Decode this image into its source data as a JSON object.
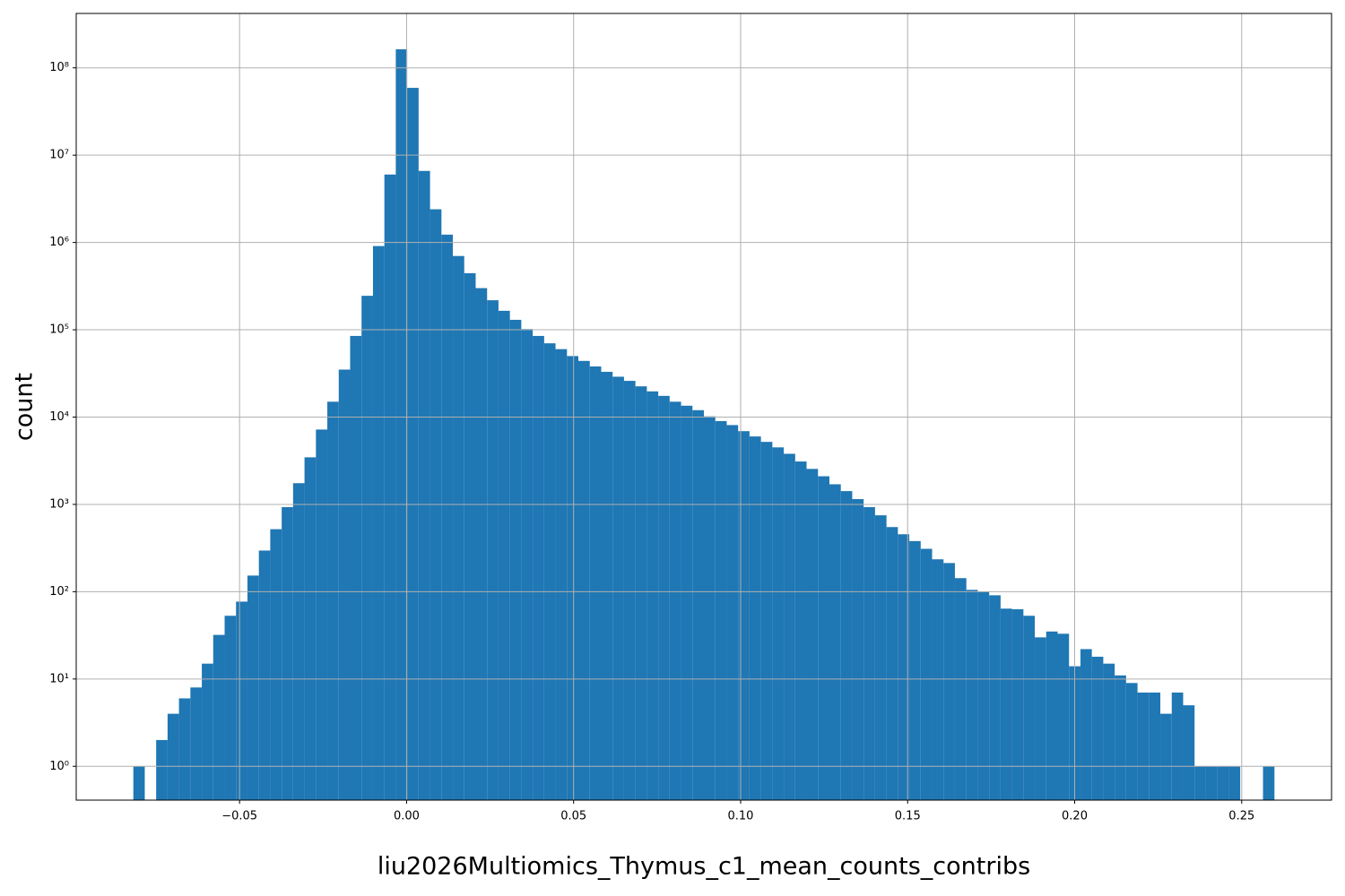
{
  "chart_data": {
    "type": "histogram",
    "x_label": "liu2026Multiomics_Thymus_c1_mean_counts_contribs",
    "y_label": "count",
    "color": "#1f77b4",
    "log_y": true,
    "grid": true,
    "bins": [
      -0.0818,
      -0.07838,
      -0.07497,
      -0.07155,
      -0.06814,
      -0.06472,
      -0.0613,
      -0.05789,
      -0.05447,
      -0.05106,
      -0.04764,
      -0.04422,
      -0.04081,
      -0.03739,
      -0.03398,
      -0.03056,
      -0.02714,
      -0.02373,
      -0.02031,
      -0.0169,
      -0.01348,
      -0.01006,
      -0.00665,
      -0.00323,
      0.00018,
      0.0036,
      0.00702,
      0.01043,
      0.01385,
      0.01726,
      0.02068,
      0.0241,
      0.02751,
      0.03093,
      0.03434,
      0.03776,
      0.04118,
      0.04459,
      0.04801,
      0.05142,
      0.05484,
      0.05826,
      0.06167,
      0.06509,
      0.0685,
      0.07192,
      0.07534,
      0.07875,
      0.08217,
      0.08558,
      0.089,
      0.09242,
      0.09583,
      0.09925,
      0.10266,
      0.10608,
      0.1095,
      0.11291,
      0.11633,
      0.11974,
      0.12316,
      0.12658,
      0.12999,
      0.13341,
      0.13682,
      0.14024,
      0.14366,
      0.14707,
      0.15049,
      0.1539,
      0.15732,
      0.16074,
      0.16415,
      0.16757,
      0.17098,
      0.1744,
      0.17782,
      0.18123,
      0.18465,
      0.18806,
      0.19148,
      0.1949,
      0.19831,
      0.20173,
      0.20514,
      0.20856,
      0.21198,
      0.21539,
      0.21881,
      0.22222,
      0.22564,
      0.22906,
      0.23247,
      0.23589,
      0.2393,
      0.24272,
      0.24614,
      0.24955,
      0.25297,
      0.25638,
      0.2598
    ],
    "values": [
      1,
      0,
      2,
      4,
      6,
      8,
      15,
      32,
      53,
      77,
      153,
      296,
      520,
      930,
      1750,
      3460,
      7200,
      15000,
      35000,
      85000,
      245000,
      910000,
      6000000,
      163000000,
      59000000,
      6600000,
      2400000,
      1230000,
      700000,
      445000,
      300000,
      218000,
      165000,
      130000,
      102000,
      85000,
      70000,
      60000,
      50000,
      44000,
      38000,
      33000,
      29000,
      26000,
      22500,
      19700,
      17500,
      15000,
      13500,
      12000,
      10200,
      9000,
      8100,
      6900,
      6000,
      5200,
      4500,
      3800,
      3100,
      2550,
      2100,
      1700,
      1420,
      1150,
      930,
      750,
      550,
      455,
      380,
      310,
      235,
      213,
      143,
      105,
      100,
      91,
      64,
      63,
      53,
      30,
      35,
      33,
      14,
      22,
      18,
      15,
      11,
      9,
      7,
      7,
      4,
      7,
      5,
      1,
      1,
      1,
      1,
      0,
      0,
      1
    ],
    "xlim": [
      -0.0989,
      0.2769
    ],
    "ylim": [
      0.41,
      420000000
    ],
    "xticks": [
      {
        "value": -0.05,
        "label": "−0.05"
      },
      {
        "value": 0,
        "label": "0.00"
      },
      0.05,
      {
        "value": 0.1,
        "label": "0.10"
      },
      0.15,
      {
        "value": 0.2,
        "label": "0.20"
      },
      0.25
    ],
    "yticks": [
      {
        "value": 1,
        "label": "10⁰"
      },
      {
        "value": 10,
        "label": "10¹"
      },
      {
        "value": 100,
        "label": "10²"
      },
      {
        "value": 1000,
        "label": "10³"
      },
      {
        "value": 10000,
        "label": "10⁴"
      },
      {
        "value": 100000,
        "label": "10⁵"
      },
      {
        "value": 1000000,
        "label": "10⁶"
      },
      {
        "value": 10000000,
        "label": "10⁷"
      },
      {
        "value": 100000000,
        "label": "10⁸"
      }
    ]
  }
}
